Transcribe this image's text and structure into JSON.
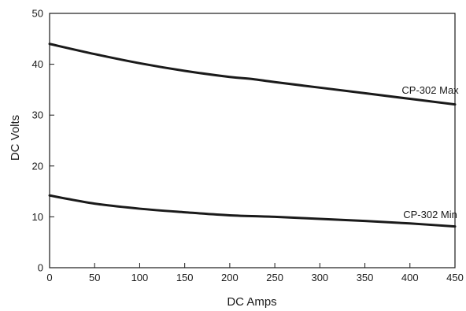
{
  "chart_data": {
    "type": "line",
    "xlabel": "DC Amps",
    "ylabel": "DC Volts",
    "xlim": [
      0,
      450
    ],
    "ylim": [
      0,
      50
    ],
    "xticks": [
      0,
      50,
      100,
      150,
      200,
      250,
      300,
      350,
      400,
      450
    ],
    "yticks": [
      0,
      10,
      20,
      30,
      40,
      50
    ],
    "grid": false,
    "series": [
      {
        "name": "CP-302 Max",
        "color": "#1a1a1a",
        "points": [
          [
            0,
            44
          ],
          [
            50,
            42
          ],
          [
            100,
            40.2
          ],
          [
            150,
            38.7
          ],
          [
            200,
            37.5
          ],
          [
            225,
            37.1
          ],
          [
            250,
            36.5
          ],
          [
            300,
            35.4
          ],
          [
            350,
            34.3
          ],
          [
            400,
            33.2
          ],
          [
            450,
            32.1
          ]
        ]
      },
      {
        "name": "CP-302 Min",
        "color": "#1a1a1a",
        "points": [
          [
            0,
            14.2
          ],
          [
            50,
            12.6
          ],
          [
            100,
            11.6
          ],
          [
            150,
            10.9
          ],
          [
            200,
            10.3
          ],
          [
            250,
            10.0
          ],
          [
            300,
            9.6
          ],
          [
            350,
            9.2
          ],
          [
            400,
            8.7
          ],
          [
            450,
            8.1
          ]
        ]
      }
    ]
  }
}
